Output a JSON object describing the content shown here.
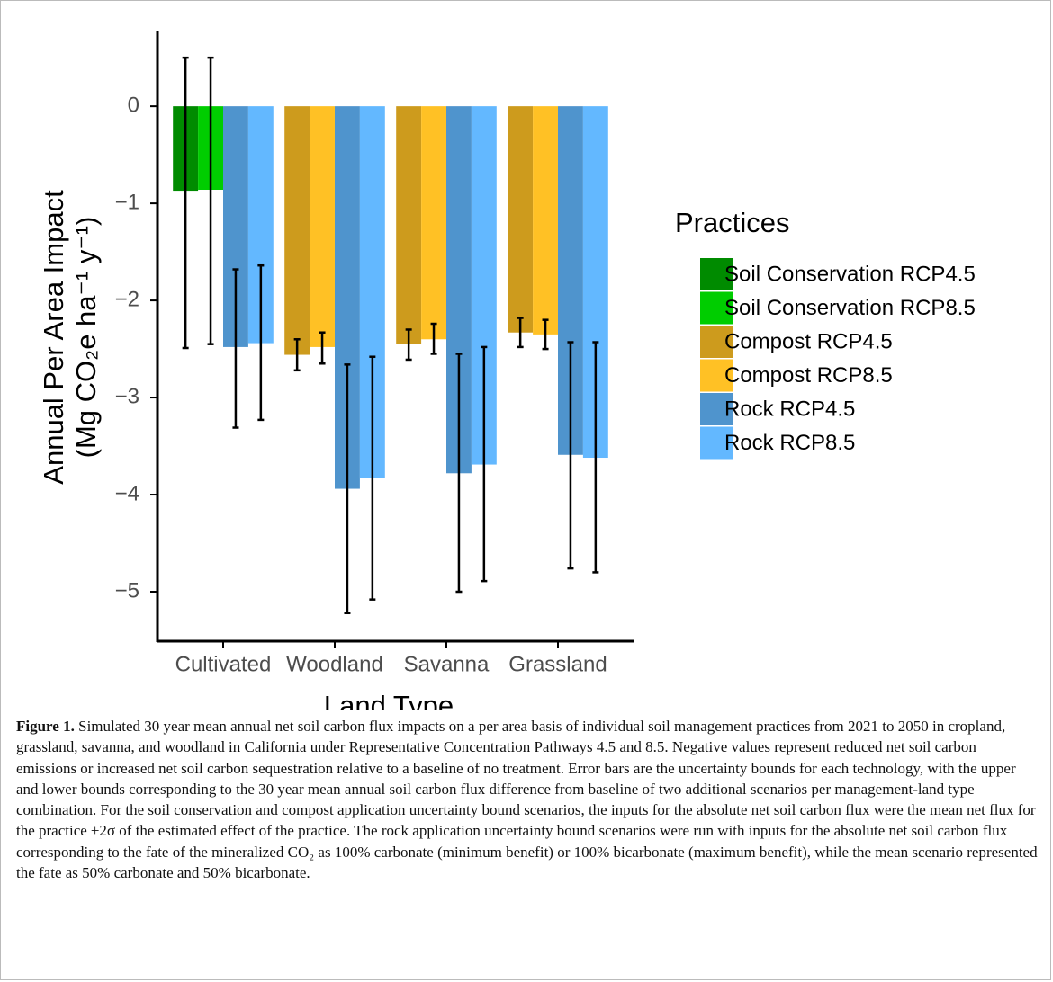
{
  "chart_data": {
    "type": "bar",
    "x_label": "Land Type",
    "y_label": [
      "Annual Per Area Impact",
      "(Mg CO₂e ha⁻¹ y⁻¹)"
    ],
    "categories": [
      "Cultivated",
      "Woodland",
      "Savanna",
      "Grassland"
    ],
    "legend_title": "Practices",
    "legend_position": "right",
    "ylim": [
      -5.5,
      0.77
    ],
    "yticks": [
      {
        "value": 0,
        "label": "0"
      },
      {
        "value": -1,
        "label": "−1"
      },
      {
        "value": -2,
        "label": "−2"
      },
      {
        "value": -3,
        "label": "−3"
      },
      {
        "value": -4,
        "label": "−4"
      },
      {
        "value": -5,
        "label": "−5"
      }
    ],
    "series": [
      {
        "name": "Soil Conservation RCP4.5",
        "color": "#008B00",
        "values": [
          -0.87,
          null,
          null,
          null
        ],
        "error_low": [
          -2.49,
          null,
          null,
          null
        ],
        "error_high": [
          0.5,
          null,
          null,
          null
        ]
      },
      {
        "name": "Soil Conservation RCP8.5",
        "color": "#00CD00",
        "values": [
          -0.86,
          null,
          null,
          null
        ],
        "error_low": [
          -2.45,
          null,
          null,
          null
        ],
        "error_high": [
          0.5,
          null,
          null,
          null
        ]
      },
      {
        "name": "Compost RCP4.5",
        "color": "#CD9B1D",
        "values": [
          null,
          -2.56,
          -2.45,
          -2.33
        ],
        "error_low": [
          null,
          -2.72,
          -2.61,
          -2.48
        ],
        "error_high": [
          null,
          -2.4,
          -2.3,
          -2.18
        ]
      },
      {
        "name": "Compost RCP8.5",
        "color": "#FFC125",
        "values": [
          null,
          -2.48,
          -2.4,
          -2.35
        ],
        "error_low": [
          null,
          -2.65,
          -2.55,
          -2.5
        ],
        "error_high": [
          null,
          -2.33,
          -2.24,
          -2.2
        ]
      },
      {
        "name": "Rock RCP4.5",
        "color": "#4F94CD",
        "values": [
          -2.48,
          -3.94,
          -3.78,
          -3.59
        ],
        "error_low": [
          -3.31,
          -5.22,
          -5.0,
          -4.76
        ],
        "error_high": [
          -1.68,
          -2.66,
          -2.55,
          -2.43
        ]
      },
      {
        "name": "Rock RCP8.5",
        "color": "#63B8FF",
        "values": [
          -2.44,
          -3.83,
          -3.69,
          -3.62
        ],
        "error_low": [
          -3.23,
          -5.08,
          -4.89,
          -4.8
        ],
        "error_high": [
          -1.64,
          -2.58,
          -2.48,
          -2.43
        ]
      }
    ],
    "caption": {
      "label": "Figure 1.",
      "text": "Simulated 30 year mean annual net soil carbon flux impacts on a per area basis of individual soil management practices from 2021 to 2050 in cropland, grassland, savanna, and woodland in California under Representative Concentration Pathways 4.5 and 8.5. Negative values represent reduced net soil carbon emissions or increased net soil carbon sequestration relative to a baseline of no treatment. Error bars are the uncertainty bounds for each technology, with the upper and lower bounds corresponding to the 30 year mean annual soil carbon flux difference from baseline of two additional scenarios per management-land type combination. For the soil conservation and compost application uncertainty bound scenarios, the inputs for the absolute net soil carbon flux were the mean net flux for the practice ±2σ of the estimated effect of the practice. The rock application uncertainty bound scenarios were run with inputs for the absolute net soil carbon flux corresponding to the fate of the mineralized CO₂ as 100% carbonate (minimum benefit) or 100% bicarbonate (maximum benefit), while the mean scenario represented the fate as 50% carbonate and 50% bicarbonate."
    }
  }
}
